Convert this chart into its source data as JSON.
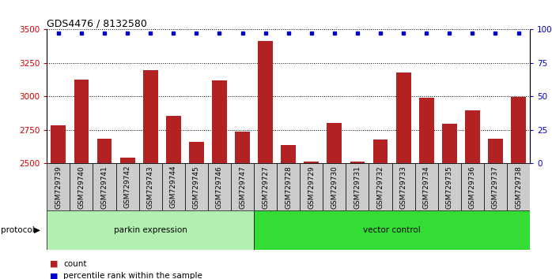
{
  "title": "GDS4476 / 8132580",
  "samples": [
    "GSM729739",
    "GSM729740",
    "GSM729741",
    "GSM729742",
    "GSM729743",
    "GSM729744",
    "GSM729745",
    "GSM729746",
    "GSM729747",
    "GSM729727",
    "GSM729728",
    "GSM729729",
    "GSM729730",
    "GSM729731",
    "GSM729732",
    "GSM729733",
    "GSM729734",
    "GSM729735",
    "GSM729736",
    "GSM729737",
    "GSM729738"
  ],
  "counts": [
    2785,
    3125,
    2685,
    2540,
    3195,
    2855,
    2660,
    3120,
    2735,
    3415,
    2635,
    2510,
    2800,
    2510,
    2680,
    3180,
    2990,
    2795,
    2895,
    2685,
    2995
  ],
  "percentiles": [
    97,
    97,
    97,
    97,
    97,
    97,
    97,
    97,
    97,
    97,
    97,
    97,
    97,
    97,
    97,
    97,
    97,
    97,
    97,
    97,
    97
  ],
  "parkin_count": 9,
  "bar_color": "#b22222",
  "dot_color": "#0000cc",
  "ylim_left": [
    2500,
    3500
  ],
  "ylim_right": [
    0,
    100
  ],
  "yticks_left": [
    2500,
    2750,
    3000,
    3250,
    3500
  ],
  "yticks_right": [
    0,
    25,
    50,
    75,
    100
  ],
  "parkin_color": "#b2f0b2",
  "vector_color": "#33dd33",
  "protocol_label": "protocol",
  "parkin_label": "parkin expression",
  "vector_label": "vector control",
  "legend_count": "count",
  "legend_pct": "percentile rank within the sample",
  "title_fontsize": 9,
  "tick_fontsize": 6.5,
  "label_fontsize": 7.5,
  "grid_color": "#555555",
  "ticklabel_color_left": "#cc0000",
  "ticklabel_color_right": "#0000cc",
  "gray_bg": "#cccccc"
}
